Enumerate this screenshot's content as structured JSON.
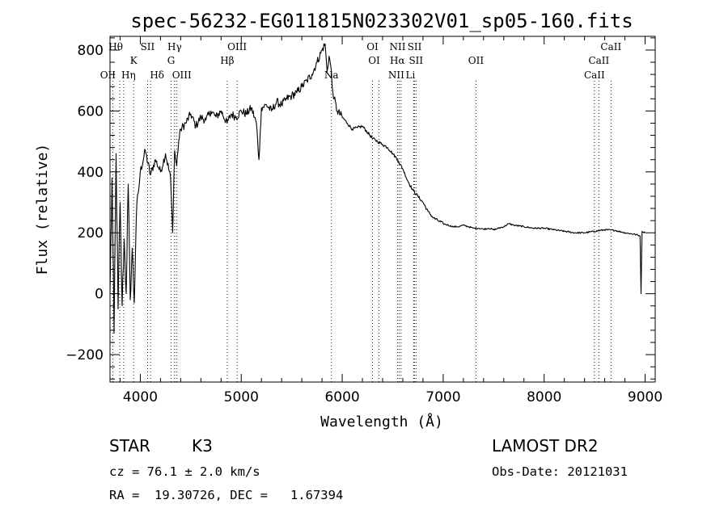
{
  "chart_data": {
    "type": "line",
    "title": "spec-56232-EG011815N023302V01_sp05-160.fits",
    "xlabel": "Wavelength (Å)",
    "ylabel": "Flux (relative)",
    "xlim": [
      3700,
      9100
    ],
    "ylim": [
      -290,
      845
    ],
    "x_ticks": [
      4000,
      5000,
      6000,
      7000,
      8000,
      9000
    ],
    "y_ticks": [
      -200,
      0,
      200,
      400,
      600,
      800
    ],
    "grid": false,
    "series": [
      {
        "x": [
          3700,
          3720,
          3740,
          3760,
          3780,
          3800,
          3820,
          3840,
          3860,
          3880,
          3900,
          3920,
          3940,
          3960,
          3980,
          4000,
          4050,
          4100,
          4150,
          4200,
          4250,
          4300,
          4320,
          4340,
          4360,
          4380,
          4400,
          4450,
          4500,
          4550,
          4600,
          4650,
          4700,
          4750,
          4800,
          4860,
          4900,
          4950,
          5000,
          5050,
          5100,
          5150,
          5175,
          5200,
          5250,
          5300,
          5350,
          5400,
          5450,
          5500,
          5550,
          5600,
          5650,
          5700,
          5750,
          5800,
          5830,
          5850,
          5870,
          5890,
          5900,
          5920,
          5950,
          6000,
          6050,
          6100,
          6150,
          6200,
          6250,
          6300,
          6350,
          6400,
          6450,
          6500,
          6550,
          6563,
          6600,
          6650,
          6700,
          6750,
          6800,
          6850,
          6900,
          6950,
          7000,
          7050,
          7100,
          7150,
          7200,
          7250,
          7300,
          7350,
          7400,
          7450,
          7500,
          7600,
          7650,
          7700,
          7800,
          7900,
          8000,
          8100,
          8200,
          8300,
          8400,
          8500,
          8600,
          8700,
          8800,
          8900,
          8950,
          8960,
          8970,
          9000
        ],
        "y": [
          0,
          380,
          -130,
          460,
          -50,
          300,
          -40,
          180,
          0,
          360,
          -20,
          150,
          -30,
          250,
          330,
          400,
          470,
          390,
          440,
          400,
          460,
          380,
          200,
          470,
          420,
          500,
          540,
          560,
          590,
          550,
          580,
          570,
          600,
          580,
          600,
          560,
          590,
          580,
          600,
          590,
          610,
          560,
          440,
          610,
          620,
          600,
          630,
          620,
          640,
          650,
          660,
          680,
          700,
          720,
          760,
          800,
          820,
          730,
          780,
          740,
          680,
          640,
          600,
          580,
          560,
          540,
          545,
          550,
          530,
          510,
          500,
          490,
          480,
          460,
          440,
          430,
          410,
          370,
          340,
          320,
          300,
          270,
          250,
          240,
          230,
          225,
          220,
          220,
          225,
          220,
          215,
          215,
          212,
          215,
          210,
          220,
          230,
          225,
          220,
          215,
          215,
          210,
          205,
          200,
          200,
          205,
          210,
          208,
          200,
          195,
          190,
          0,
          205,
          200
        ]
      }
    ],
    "line_markers": [
      {
        "label": "Hθ",
        "wl": 3797
      },
      {
        "label": "OII",
        "wl": 3727
      },
      {
        "label": "Hη",
        "wl": 3835
      },
      {
        "label": "K",
        "wl": 3934
      },
      {
        "label": "SII",
        "wl": 4072
      },
      {
        "label": "Hδ",
        "wl": 4102
      },
      {
        "label": "Hγ",
        "wl": 4340
      },
      {
        "label": "G",
        "wl": 4305
      },
      {
        "label": "OIII",
        "wl": 4363
      },
      {
        "label": "OIII",
        "wl": 4959
      },
      {
        "label": "Hβ",
        "wl": 4861
      },
      {
        "label": "Na",
        "wl": 5893
      },
      {
        "label": "OI",
        "wl": 6300
      },
      {
        "label": "OI",
        "wl": 6364
      },
      {
        "label": "NII",
        "wl": 6548
      },
      {
        "label": "SII",
        "wl": 6717
      },
      {
        "label": "Hα",
        "wl": 6563
      },
      {
        "label": "SII",
        "wl": 6731
      },
      {
        "label": "NII",
        "wl": 6583
      },
      {
        "label": "Li",
        "wl": 6708
      },
      {
        "label": "OII",
        "wl": 7325
      },
      {
        "label": "CaII",
        "wl": 8662
      },
      {
        "label": "CaII",
        "wl": 8542
      },
      {
        "label": "CaII",
        "wl": 8498
      }
    ]
  },
  "info": {
    "class_label": "STAR",
    "subclass": "K3",
    "survey": "LAMOST DR2",
    "cz_text": "cz = 76.1 ± 2.0 km/s",
    "obs_date_text": "Obs-Date: 20121031",
    "radec_text": "RA =  19.30726, DEC =   1.67394"
  }
}
